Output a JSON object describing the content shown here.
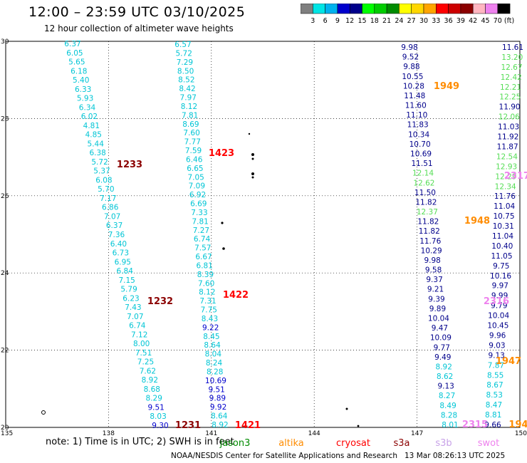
{
  "title": "12:00 – 23:59 UTC 03/10/2025",
  "subtitle": "12 hour collection of altimeter wave heights",
  "colorbar": {
    "ticks": [
      "3",
      "6",
      "9",
      "12",
      "15",
      "18",
      "21",
      "24",
      "27",
      "30",
      "33",
      "36",
      "39",
      "42",
      "45",
      "70"
    ],
    "unit": "(ft)",
    "colors": [
      "#7f7f7f",
      "#00e5e5",
      "#00b2ee",
      "#0000cd",
      "#00008b",
      "#00ff00",
      "#00cd00",
      "#008b00",
      "#ffff00",
      "#ffd700",
      "#ffa500",
      "#ff0000",
      "#cd0000",
      "#8b0000",
      "#ffb6c1",
      "#ee82ee",
      "#000000"
    ]
  },
  "axes": {
    "x_ticks": [
      "135",
      "138",
      "141",
      "144",
      "147",
      "150"
    ],
    "y_ticks": [
      "30",
      "28",
      "26",
      "24",
      "22",
      "20"
    ]
  },
  "time_labels": [
    {
      "text": "1233",
      "color": "#8b0000"
    },
    {
      "text": "1232",
      "color": "#8b0000"
    },
    {
      "text": "1231",
      "color": "#8b0000"
    },
    {
      "text": "1423",
      "color": "#ff0000"
    },
    {
      "text": "1422",
      "color": "#ff0000"
    },
    {
      "text": "1421",
      "color": "#ff0000"
    },
    {
      "text": "1949",
      "color": "#ff8c00"
    },
    {
      "text": "1948",
      "color": "#ff8c00"
    },
    {
      "text": "1947",
      "color": "#ff8c00"
    },
    {
      "text": "194",
      "color": "#ff8c00"
    },
    {
      "text": "2317",
      "color": "#ee82ee"
    },
    {
      "text": "2316",
      "color": "#ee82ee"
    },
    {
      "text": "2315",
      "color": "#ee82ee"
    }
  ],
  "tracks": {
    "track_a": [
      "6.37",
      "6.05",
      "5.65",
      "6.18",
      "5.40",
      "6.33",
      "5.93",
      "6.34",
      "6.02",
      "4.81",
      "4.85",
      "5.44",
      "6.38",
      "5.72",
      "5.37",
      "6.08",
      "5.70",
      "7.17",
      "6.86",
      "7.07",
      "6.37",
      "7.36",
      "6.40",
      "6.73",
      "6.95",
      "6.84",
      "7.15",
      "5.79",
      "6.23",
      "7.43",
      "7.07",
      "6.74",
      "7.12",
      "8.00",
      "7.51",
      "7.25",
      "7.62",
      "8.92",
      "8.68",
      "8.29",
      "9.51",
      "8.03",
      "9.30"
    ],
    "track_b": [
      "6.57",
      "5.72",
      "7.29",
      "8.50",
      "8.52",
      "8.42",
      "7.97",
      "8.12",
      "7.81",
      "8.69",
      "7.60",
      "7.77",
      "7.59",
      "6.46",
      "6.65",
      "7.05",
      "7.09",
      "6.92",
      "6.69",
      "7.33",
      "7.81",
      "7.27",
      "6.74",
      "7.57",
      "6.67",
      "6.81",
      "8.39",
      "7.60",
      "8.12",
      "7.31",
      "7.75",
      "8.43",
      "9.22",
      "8.45",
      "8.64",
      "8.04",
      "8.24",
      "8.28",
      "10.69",
      "9.51",
      "9.89",
      "9.92",
      "8.64",
      "8.92"
    ],
    "track_c": [
      "9.98",
      "9.52",
      "9.88",
      "10.55",
      "10.28",
      "11.48",
      "11.60",
      "11.10",
      "11.83",
      "10.34",
      "10.70",
      "10.69",
      "11.51",
      "12.14",
      "12.62",
      "11.50",
      "11.82",
      "12.37",
      "11.82",
      "11.82",
      "11.76",
      "10.29",
      "9.98",
      "9.58",
      "9.37",
      "9.21",
      "9.39",
      "9.89",
      "10.04",
      "9.47",
      "10.09",
      "9.77",
      "9.49",
      "8.92",
      "8.62",
      "9.13",
      "8.27",
      "8.49",
      "8.28",
      "8.01"
    ],
    "track_d": [
      "11.61",
      "13.20",
      "12.67",
      "12.42",
      "12.21",
      "12.25",
      "11.90",
      "12.06",
      "11.03",
      "11.92",
      "11.87",
      "12.54",
      "12.93",
      "12.29",
      "12.34",
      "11.76",
      "11.04",
      "10.75",
      "10.31",
      "11.04",
      "10.40",
      "11.05",
      "9.75",
      "10.16",
      "9.97",
      "9.99",
      "9.79",
      "10.04",
      "10.45",
      "9.96",
      "9.03",
      "9.13",
      "7.87",
      "8.55",
      "8.67",
      "8.53",
      "8.47",
      "8.81",
      "9.66"
    ]
  },
  "footnote": "note: 1) Time is in UTC; 2) SWH is in feet",
  "satellites": [
    {
      "name": "jason3",
      "color": "#008b00"
    },
    {
      "name": "altika",
      "color": "#ff8c00"
    },
    {
      "name": "cryosat",
      "color": "#ff0000"
    },
    {
      "name": "s3a",
      "color": "#8b0000"
    },
    {
      "name": "s3b",
      "color": "#c8a2e8"
    },
    {
      "name": "swot",
      "color": "#ee82ee"
    }
  ],
  "credit": "NOAA/NESDIS Center for Satellite Applications and Research",
  "timestamp": "13 Mar 08:26:13 UTC 2025"
}
